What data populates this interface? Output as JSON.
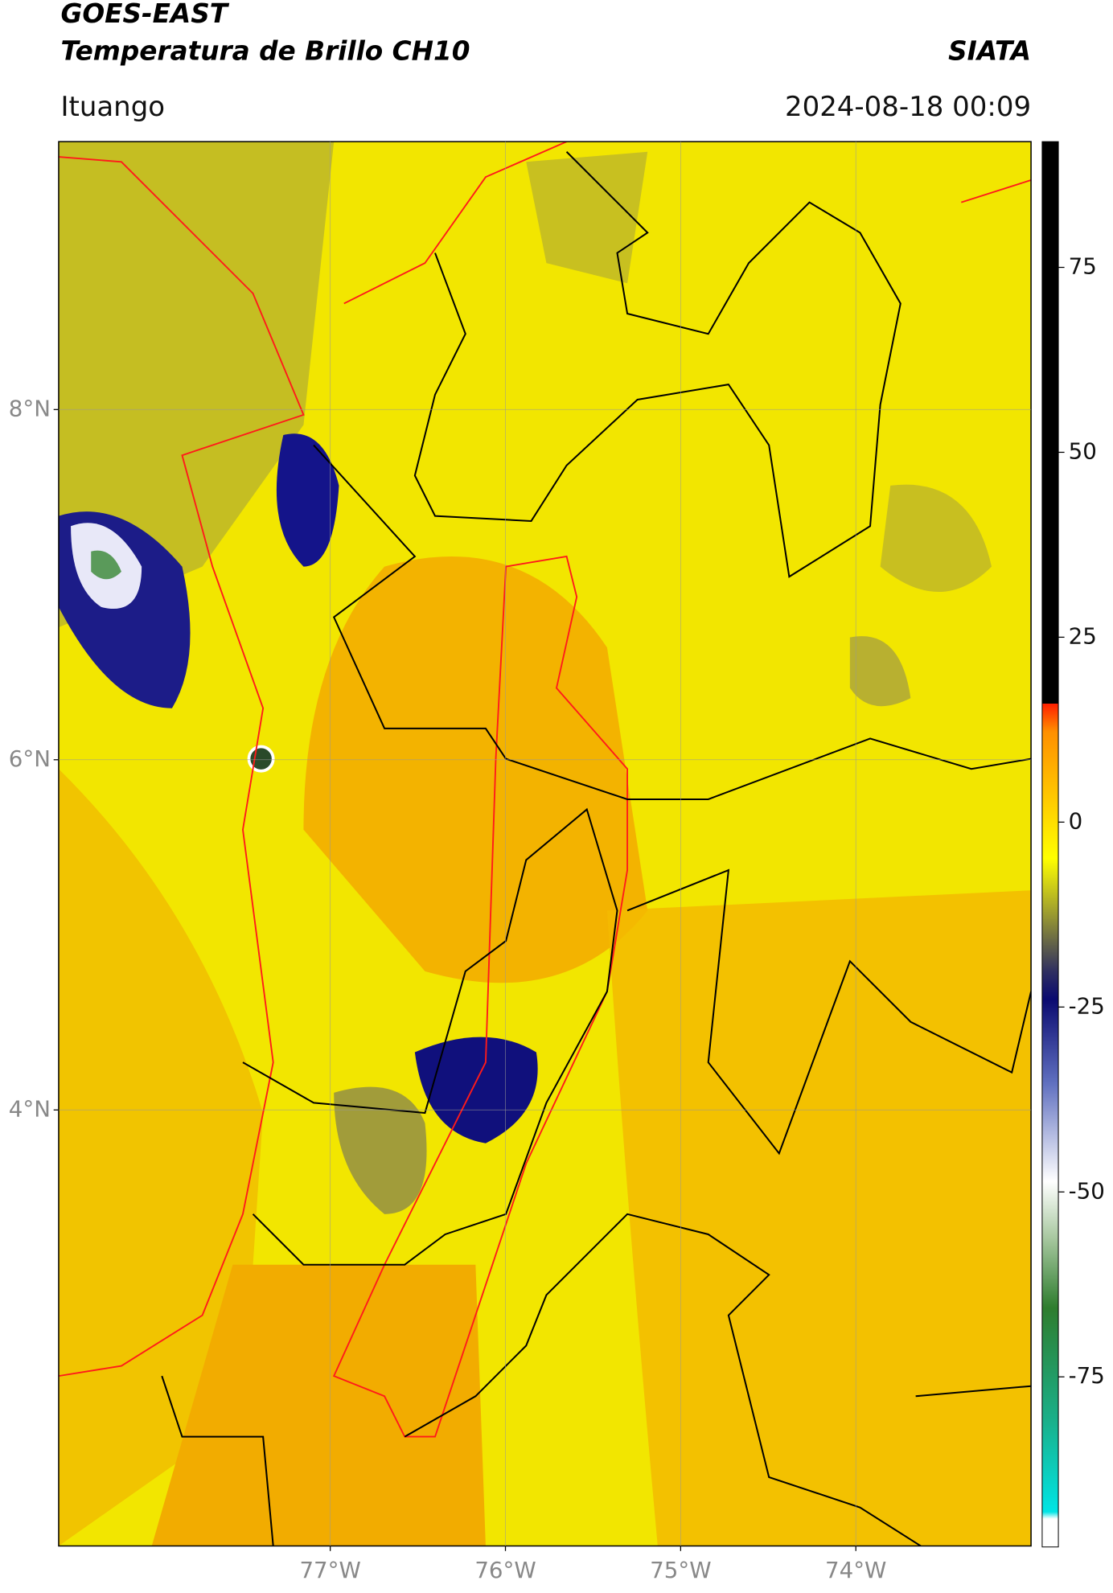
{
  "chart_data": {
    "type": "map",
    "title": [
      "GOES-EAST",
      "Temperatura de Brillo CH10"
    ],
    "source": "SIATA",
    "location": "Ituango",
    "timestamp": "2024-08-18 00:09",
    "xlim": [
      -78.55,
      -73.0
    ],
    "ylim": [
      1.51,
      9.53
    ],
    "xticks": [
      {
        "value": -77,
        "label": "77°W"
      },
      {
        "value": -76,
        "label": "76°W"
      },
      {
        "value": -75,
        "label": "75°W"
      },
      {
        "value": -74,
        "label": "74°W"
      }
    ],
    "yticks": [
      {
        "value": 4,
        "label": "4°N"
      },
      {
        "value": 6,
        "label": "6°N"
      },
      {
        "value": 8,
        "label": "8°N"
      }
    ],
    "grid": true,
    "colorbar": {
      "lim": [
        -98,
        92
      ],
      "ticks": [
        75,
        50,
        25,
        0,
        -25,
        -50,
        -75
      ]
    }
  }
}
